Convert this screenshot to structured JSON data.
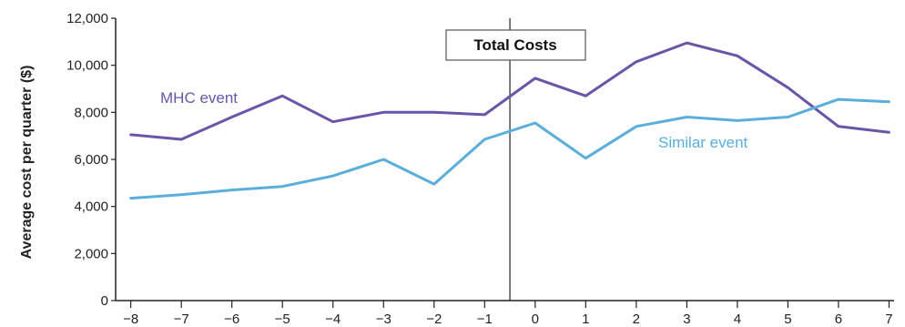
{
  "chart_data": {
    "type": "line",
    "title": "Total Costs",
    "xlabel": "",
    "ylabel": "Average cost per quarter ($)",
    "x_ticks": [
      "−8",
      "−7",
      "−6",
      "−5",
      "−4",
      "−3",
      "−2",
      "−1",
      "0",
      "1",
      "2",
      "3",
      "4",
      "5",
      "6",
      "7"
    ],
    "x_values": [
      -8,
      -7,
      -6,
      -5,
      -4,
      -3,
      -2,
      -1,
      0,
      1,
      2,
      3,
      4,
      5,
      6,
      7
    ],
    "xlim": [
      -8.3,
      7.1
    ],
    "y_ticks": [
      "0",
      "2,000",
      "4,000",
      "6,000",
      "8,000",
      "10,000",
      "12,000"
    ],
    "y_tick_values": [
      0,
      2000,
      4000,
      6000,
      8000,
      10000,
      12000
    ],
    "ylim": [
      0,
      12000
    ],
    "event_marker_x": -0.5,
    "series": [
      {
        "name": "MHC event",
        "color": "#6a55a8",
        "values": [
          7050,
          6850,
          7800,
          8700,
          7600,
          8000,
          8000,
          7900,
          9450,
          8700,
          10150,
          10950,
          10400,
          9050,
          7400,
          7150
        ]
      },
      {
        "name": "Similar event",
        "color": "#5aaedc",
        "values": [
          4350,
          4500,
          4700,
          4850,
          5300,
          6000,
          4950,
          6850,
          7550,
          6050,
          7400,
          7800,
          7650,
          7800,
          8550,
          8450
        ]
      }
    ]
  }
}
